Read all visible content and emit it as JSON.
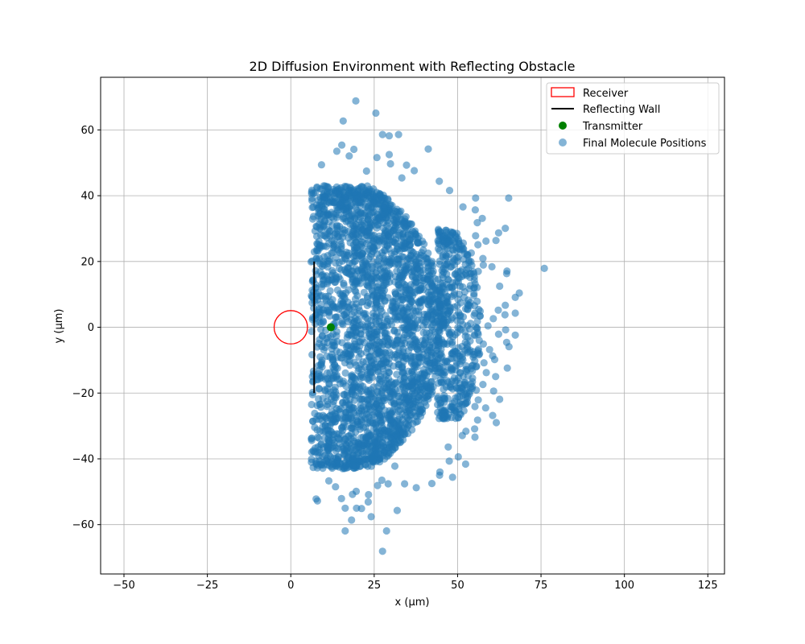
{
  "chart_data": {
    "type": "scatter",
    "title": "2D Diffusion Environment with Reflecting Obstacle",
    "xlabel": "x (µm)",
    "ylabel": "y (µm)",
    "xlim": [
      -57,
      130
    ],
    "ylim": [
      -75,
      76
    ],
    "x_ticks": [
      -50,
      -25,
      0,
      25,
      50,
      75,
      100,
      125
    ],
    "y_ticks": [
      -60,
      -40,
      -20,
      0,
      20,
      40,
      60
    ],
    "grid": true,
    "legend_position": "top-right",
    "colors": {
      "receiver": "#ff0000",
      "wall": "#000000",
      "transmitter": "#008000",
      "molecules": "#1f77b4"
    },
    "receiver": {
      "label": "Receiver",
      "center": [
        0,
        0
      ],
      "radius": 5
    },
    "wall": {
      "label": "Reflecting Wall",
      "x": 7,
      "y_range": [
        -20,
        20
      ]
    },
    "transmitter": {
      "label": "Transmitter",
      "x": 12,
      "y": 0
    },
    "molecules": {
      "label": "Final Molecule Positions",
      "points": [
        [
          19.5,
          68.8
        ],
        [
          25.5,
          65.1
        ],
        [
          15.7,
          62.7
        ],
        [
          27.5,
          58.6
        ],
        [
          32.3,
          58.6
        ],
        [
          29.5,
          58.2
        ],
        [
          15.3,
          55.4
        ],
        [
          25.8,
          51.6
        ],
        [
          29.5,
          52.5
        ],
        [
          13.8,
          53.5
        ],
        [
          18.9,
          54.1
        ],
        [
          34.7,
          49.3
        ],
        [
          29.9,
          49.7
        ],
        [
          41.2,
          54.2
        ],
        [
          9.2,
          49.4
        ],
        [
          17.5,
          52.1
        ],
        [
          22.7,
          47.5
        ],
        [
          33.3,
          45.4
        ],
        [
          37.0,
          47.6
        ],
        [
          44.5,
          44.4
        ],
        [
          47.6,
          41.6
        ],
        [
          65.3,
          39.3
        ],
        [
          55.4,
          39.3
        ],
        [
          51.6,
          36.6
        ],
        [
          55.3,
          35.7
        ],
        [
          57.4,
          33.1
        ],
        [
          55.9,
          31.8
        ],
        [
          64.3,
          30.1
        ],
        [
          62.3,
          28.7
        ],
        [
          58.5,
          26.2
        ],
        [
          61.5,
          26.4
        ],
        [
          55.4,
          27.8
        ],
        [
          56.1,
          25.1
        ],
        [
          49.7,
          27.5
        ],
        [
          51.6,
          23.9
        ],
        [
          54.1,
          22.6
        ],
        [
          57.6,
          20.9
        ],
        [
          57.7,
          18.9
        ],
        [
          60.3,
          18.4
        ],
        [
          56.2,
          17.0
        ],
        [
          64.8,
          17.1
        ],
        [
          64.7,
          16.3
        ],
        [
          76.0,
          17.9
        ],
        [
          62.6,
          12.5
        ],
        [
          68.5,
          10.4
        ],
        [
          67.3,
          9.1
        ],
        [
          64.3,
          6.7
        ],
        [
          62.2,
          5.2
        ],
        [
          67.3,
          4.3
        ],
        [
          64.2,
          3.8
        ],
        [
          60.7,
          2.6
        ],
        [
          59.1,
          0.4
        ],
        [
          64.4,
          -0.8
        ],
        [
          67.3,
          -2.4
        ],
        [
          62.3,
          -2.1
        ],
        [
          64.7,
          -4.6
        ],
        [
          65.4,
          -5.9
        ],
        [
          57.7,
          -5.1
        ],
        [
          59.6,
          -6.8
        ],
        [
          60.5,
          -8.7
        ],
        [
          61.1,
          -9.8
        ],
        [
          57.9,
          -10.8
        ],
        [
          58.6,
          -13.8
        ],
        [
          64.9,
          -12.4
        ],
        [
          61.4,
          -15.0
        ],
        [
          57.6,
          -17.4
        ],
        [
          60.8,
          -19.4
        ],
        [
          55.6,
          -19.1
        ],
        [
          62.6,
          -21.9
        ],
        [
          56.2,
          -22.1
        ],
        [
          52.9,
          -22.8
        ],
        [
          55.2,
          -24.1
        ],
        [
          58.4,
          -24.5
        ],
        [
          60.5,
          -26.8
        ],
        [
          61.6,
          -29.0
        ],
        [
          56.0,
          -28.2
        ],
        [
          52.5,
          -31.6
        ],
        [
          55.1,
          -30.9
        ],
        [
          55.2,
          -33.4
        ],
        [
          51.4,
          -32.9
        ],
        [
          47.2,
          -36.4
        ],
        [
          50.2,
          -39.4
        ],
        [
          47.5,
          -40.7
        ],
        [
          52.4,
          -41.6
        ],
        [
          44.7,
          -44.0
        ],
        [
          48.5,
          -45.6
        ],
        [
          44.6,
          -45.0
        ],
        [
          42.3,
          -47.5
        ],
        [
          37.6,
          -48.8
        ],
        [
          34.1,
          -47.6
        ],
        [
          29.2,
          -47.6
        ],
        [
          27.3,
          -46.5
        ],
        [
          31.2,
          -42.2
        ],
        [
          26.0,
          -48.1
        ],
        [
          23.3,
          -50.9
        ],
        [
          19.6,
          -49.9
        ],
        [
          18.5,
          -50.8
        ],
        [
          23.2,
          -53.1
        ],
        [
          19.7,
          -55.0
        ],
        [
          21.2,
          -55.1
        ],
        [
          16.3,
          -55.0
        ],
        [
          31.9,
          -55.7
        ],
        [
          15.2,
          -52.1
        ],
        [
          8.0,
          -52.8
        ],
        [
          7.6,
          -52.2
        ],
        [
          11.4,
          -46.7
        ],
        [
          13.4,
          -48.5
        ],
        [
          18.2,
          -58.6
        ],
        [
          24.1,
          -57.6
        ],
        [
          16.3,
          -61.9
        ],
        [
          28.7,
          -61.9
        ],
        [
          27.5,
          -68.1
        ]
      ],
      "bulk": {
        "main_region": {
          "x_range": [
            6,
            46
          ],
          "y_range": [
            -43,
            43
          ]
        },
        "middle_band": {
          "x_range": [
            44,
            57
          ],
          "y_range": [
            -28,
            30
          ]
        }
      }
    }
  }
}
